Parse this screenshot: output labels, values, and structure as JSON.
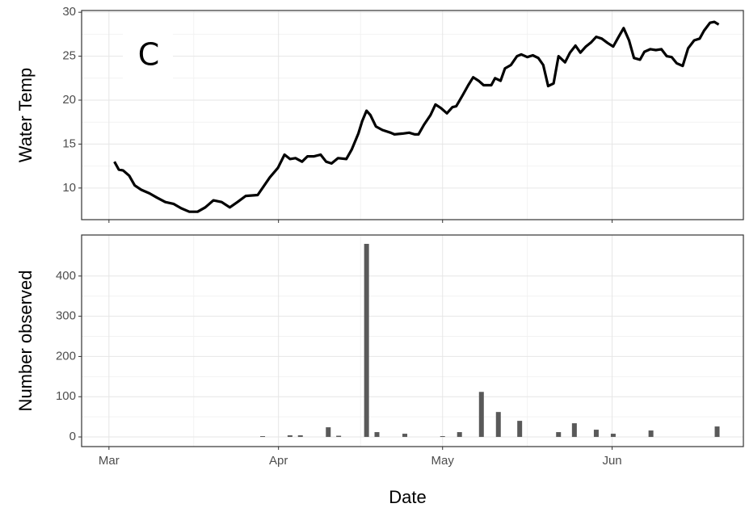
{
  "chart_data": [
    {
      "type": "line",
      "y_label": "Water Temp",
      "annotation": "C",
      "color": "#000000",
      "grid": true,
      "xlim": [
        -5,
        116
      ],
      "xticks": [
        0,
        31,
        61,
        92
      ],
      "ylim": [
        6.4,
        30.2
      ],
      "yticks": [
        10,
        15,
        20,
        25,
        30
      ],
      "x": [
        1,
        1.8,
        2.6,
        3.7,
        4.7,
        5.9,
        7.4,
        8.8,
        10.3,
        11.8,
        13.2,
        14.7,
        16.2,
        17.6,
        19.1,
        20.6,
        22.1,
        23.5,
        25,
        27.2,
        29.4,
        30.9,
        32.1,
        33.1,
        34.1,
        35.3,
        36.3,
        37.5,
        38.7,
        39.7,
        40.7,
        41.9,
        43.4,
        44.4,
        45.6,
        46.3,
        47.1,
        47.8,
        48.8,
        50,
        51.5,
        52.2,
        53.7,
        54.9,
        55.9,
        56.6,
        57.6,
        58.8,
        59.7,
        60.7,
        61.8,
        62.8,
        63.5,
        64.7,
        65.7,
        66.6,
        67.6,
        68.5,
        69.9,
        70.6,
        71.6,
        72.4,
        73.5,
        74.6,
        75.4,
        76.5,
        77.5,
        78.5,
        79.4,
        80.3,
        81.3,
        82.2,
        83.4,
        84.3,
        85.3,
        86.2,
        87.2,
        88.2,
        89.1,
        90.1,
        91.2,
        92.2,
        93.1,
        94.1,
        95.1,
        96,
        97.1,
        97.9,
        99,
        100,
        101,
        102,
        102.9,
        103.8,
        104.9,
        105.9,
        107,
        108,
        108.8,
        109.9,
        110.7,
        111.5
      ],
      "values": [
        13.0,
        12.1,
        12.0,
        11.4,
        10.3,
        9.8,
        9.4,
        8.9,
        8.4,
        8.2,
        7.7,
        7.3,
        7.3,
        7.8,
        8.6,
        8.4,
        7.8,
        8.4,
        9.1,
        9.2,
        11.2,
        12.3,
        13.8,
        13.3,
        13.4,
        13.0,
        13.6,
        13.6,
        13.8,
        13.0,
        12.8,
        13.4,
        13.3,
        14.4,
        16.2,
        17.6,
        18.8,
        18.3,
        17.0,
        16.6,
        16.3,
        16.1,
        16.2,
        16.3,
        16.1,
        16.1,
        17.2,
        18.3,
        19.5,
        19.1,
        18.5,
        19.2,
        19.3,
        20.6,
        21.7,
        22.6,
        22.2,
        21.7,
        21.7,
        22.5,
        22.2,
        23.6,
        24.0,
        25.0,
        25.2,
        24.9,
        25.1,
        24.8,
        24.0,
        21.6,
        21.9,
        25.0,
        24.3,
        25.4,
        26.2,
        25.4,
        26.1,
        26.6,
        27.2,
        27.0,
        26.5,
        26.1,
        27.1,
        28.2,
        26.8,
        24.8,
        24.6,
        25.5,
        25.8,
        25.7,
        25.8,
        25.0,
        24.9,
        24.2,
        23.9,
        25.9,
        26.8,
        27.0,
        27.9,
        28.8,
        28.9,
        28.6
      ]
    },
    {
      "type": "bar",
      "x_label": "Date",
      "y_label": "Number observed",
      "color": "#595959",
      "grid": true,
      "xlim": [
        -5,
        116
      ],
      "xticks": [
        {
          "value": 0,
          "label": "Mar"
        },
        {
          "value": 31,
          "label": "Apr"
        },
        {
          "value": 61,
          "label": "May"
        },
        {
          "value": 92,
          "label": "Jun"
        }
      ],
      "ylim": [
        -24,
        502
      ],
      "yticks": [
        0,
        100,
        200,
        300,
        400
      ],
      "x": [
        28.1,
        33.1,
        35,
        40.1,
        42,
        47.1,
        49,
        54.1,
        61,
        64.1,
        68.1,
        71.2,
        75.1,
        82.2,
        85.1,
        89.1,
        92.2,
        99.1,
        111.2
      ],
      "values": [
        2,
        4,
        4,
        24,
        3,
        480,
        12,
        8,
        2,
        12,
        112,
        62,
        40,
        12,
        34,
        18,
        8,
        16,
        26
      ]
    }
  ]
}
